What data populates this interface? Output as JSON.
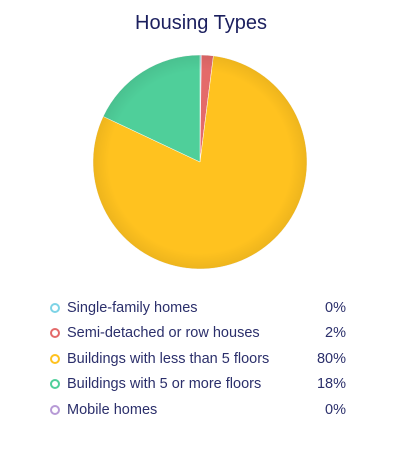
{
  "chart_data": {
    "type": "pie",
    "title": "Housing Types",
    "slices": [
      {
        "label": "Single-family homes",
        "percent_label": "0%",
        "value": 0.2,
        "color": "#7dd3e6"
      },
      {
        "label": "Semi-detached or row houses",
        "percent_label": "2%",
        "value": 1.8,
        "color": "#e46a6a"
      },
      {
        "label": "Buildings with less than 5 floors",
        "percent_label": "80%",
        "value": 80,
        "color": "#ffc21f"
      },
      {
        "label": "Buildings with 5 or more floors",
        "percent_label": "18%",
        "value": 18,
        "color": "#4fcf9a"
      },
      {
        "label": "Mobile homes",
        "percent_label": "0%",
        "value": 0,
        "color": "#b79ad6"
      }
    ]
  }
}
